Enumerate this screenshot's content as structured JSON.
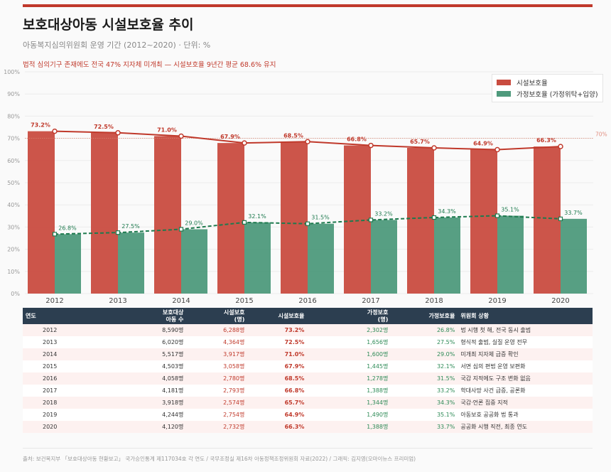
{
  "header": {
    "title": "보호대상아동 시설보호율 추이",
    "subtitle": "아동복지심의위원회 운영 기간 (2012~2020) · 단위: %",
    "note": "법적 심의기구 존재에도 전국 47% 지자체 미개최 — 시설보호율 9년간 평균 68.6% 유지"
  },
  "colors": {
    "facility": "#c94c40",
    "family": "#4e9a7c",
    "accent": "#c0392b",
    "table_header": "#2c3e50"
  },
  "chart_data": {
    "type": "bar",
    "categories": [
      "2012",
      "2013",
      "2014",
      "2015",
      "2016",
      "2017",
      "2018",
      "2019",
      "2020"
    ],
    "series": [
      {
        "name": "시설보호율",
        "values": [
          73.2,
          72.5,
          71.0,
          67.9,
          68.5,
          66.8,
          65.7,
          64.9,
          66.3
        ],
        "line": "solid"
      },
      {
        "name": "가정보호율 (가정위탁+입양)",
        "values": [
          26.8,
          27.5,
          29.0,
          32.1,
          31.5,
          33.2,
          34.3,
          35.1,
          33.7
        ],
        "line": "dashed"
      }
    ],
    "yticks": [
      "0%",
      "10%",
      "20%",
      "30%",
      "40%",
      "50%",
      "60%",
      "70%",
      "80%",
      "90%",
      "100%"
    ],
    "ylim": [
      0,
      100
    ],
    "reference_line": {
      "value": 70,
      "label": "70%"
    },
    "grid": true,
    "legend": "top-right"
  },
  "table": {
    "headers": [
      "연도",
      "보호대상\n아동 수",
      "시설보호\n(명)",
      "시설보호율",
      "가정보호\n(명)",
      "가정보호율",
      "위원회 상황"
    ],
    "rows": [
      [
        "2012",
        "8,590명",
        "6,288명",
        "73.2%",
        "2,302명",
        "26.8%",
        "법 시행 첫 해, 전국 동시 출범"
      ],
      [
        "2013",
        "6,020명",
        "4,364명",
        "72.5%",
        "1,656명",
        "27.5%",
        "형식적 출범, 실질 운영 전무"
      ],
      [
        "2014",
        "5,517명",
        "3,917명",
        "71.0%",
        "1,600명",
        "29.0%",
        "미개최 지자체 급증 확인"
      ],
      [
        "2015",
        "4,503명",
        "3,058명",
        "67.9%",
        "1,445명",
        "32.1%",
        "서면 심의 편법 운영 보편화"
      ],
      [
        "2016",
        "4,058명",
        "2,780명",
        "68.5%",
        "1,278명",
        "31.5%",
        "국감 지적에도 구조 변화 없음"
      ],
      [
        "2017",
        "4,181명",
        "2,793명",
        "66.8%",
        "1,388명",
        "33.2%",
        "학대사망 사건 급증, 공론화"
      ],
      [
        "2018",
        "3,918명",
        "2,574명",
        "65.7%",
        "1,344명",
        "34.3%",
        "국감·언론 집중 지적"
      ],
      [
        "2019",
        "4,244명",
        "2,754명",
        "64.9%",
        "1,490명",
        "35.1%",
        "아동보호 공공화 법 통과"
      ],
      [
        "2020",
        "4,120명",
        "2,732명",
        "66.3%",
        "1,388명",
        "33.7%",
        "공공화 시행 직전, 최종 연도"
      ]
    ]
  },
  "footer": {
    "source": "출처: 보건복지부 「보호대상아동 현황보고」 국가승인통계 제117034호 각 연도 / 국무조정실 제16차 아동정책조정위원회 자료(2022) / 그래픽: 김지영(오마이뉴스 프리미엄)"
  }
}
